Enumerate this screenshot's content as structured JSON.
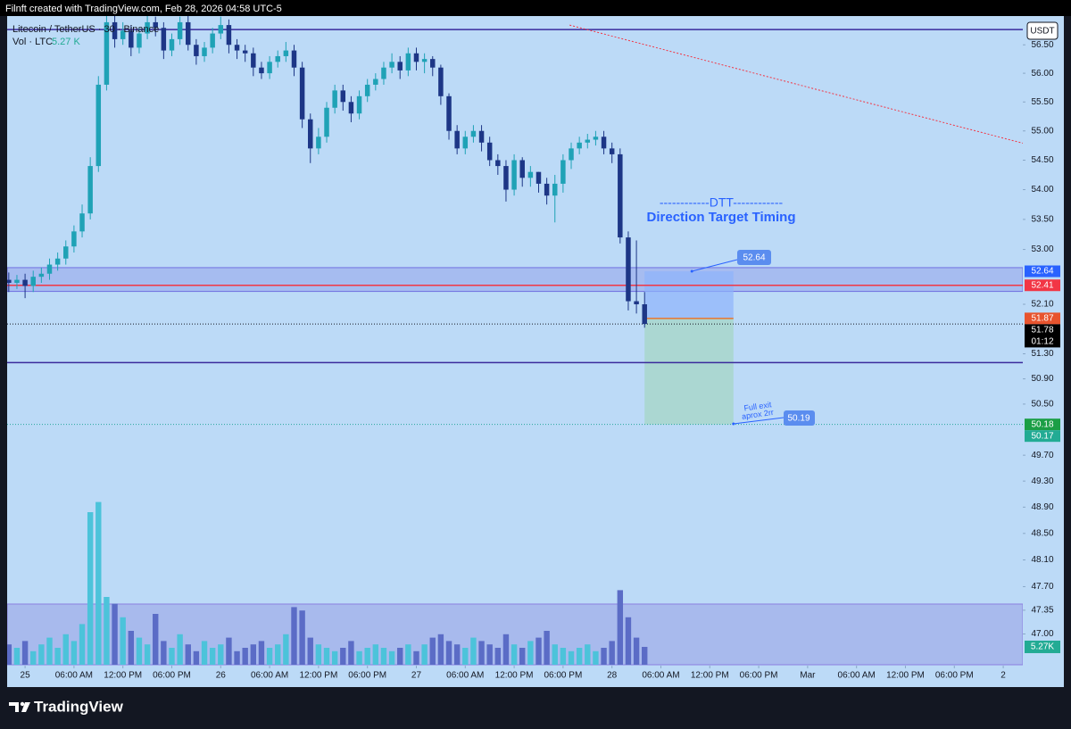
{
  "header": "Filnft created with TradingView.com, Feb 28, 2026 04:58 UTC-5",
  "brand": "TradingView",
  "chart_data": {
    "type": "candlestick",
    "title": "Litecoin / TetherUS · 30 · Binance",
    "volume_title": "Vol · LTC",
    "volume_last": {
      "value": 5.27,
      "label": "5.27 K"
    },
    "volume_badge": {
      "value": 5.27,
      "label": "5.27K"
    },
    "currency": "USDT",
    "x": [
      -2,
      -1,
      0,
      1,
      2,
      3,
      4,
      5,
      6,
      7,
      8,
      9,
      10,
      11,
      12,
      13,
      14,
      15,
      16,
      17,
      18,
      19,
      20,
      21,
      22,
      23,
      24,
      25,
      26,
      27,
      28,
      29,
      30,
      31,
      32,
      33,
      34,
      35,
      36,
      37,
      38,
      39,
      40,
      41,
      42,
      43,
      44,
      45,
      46,
      47,
      48,
      49,
      50,
      51,
      52,
      53,
      54,
      55,
      56,
      57,
      58,
      59,
      60,
      61,
      62,
      63,
      64,
      65,
      66,
      67,
      68,
      69,
      70,
      71,
      72,
      73,
      74,
      75,
      76
    ],
    "open": [
      52.5,
      52.45,
      52.5,
      52.4,
      52.55,
      52.6,
      52.75,
      52.85,
      53.05,
      53.3,
      53.6,
      54.4,
      55.8,
      56.9,
      56.6,
      56.75,
      56.45,
      56.7,
      56.9,
      56.8,
      56.4,
      56.6,
      56.9,
      56.5,
      56.3,
      56.45,
      56.7,
      56.85,
      56.5,
      56.4,
      56.35,
      56.1,
      56.0,
      56.2,
      56.3,
      56.4,
      56.1,
      55.2,
      54.7,
      54.9,
      55.4,
      55.7,
      55.5,
      55.3,
      55.6,
      55.8,
      55.9,
      56.1,
      56.2,
      56.05,
      56.35,
      56.2,
      56.25,
      56.1,
      55.6,
      55.0,
      54.7,
      54.9,
      55.0,
      54.8,
      54.5,
      54.4,
      54.0,
      54.5,
      54.2,
      54.3,
      54.1,
      53.9,
      54.1,
      54.5,
      54.7,
      54.8,
      54.85,
      54.9,
      54.7,
      54.6,
      53.2,
      52.15,
      52.1
    ],
    "high": [
      52.62,
      52.58,
      52.6,
      52.65,
      52.7,
      52.85,
      52.95,
      53.15,
      53.4,
      53.75,
      54.55,
      55.95,
      57.1,
      57.05,
      56.9,
      56.85,
      56.8,
      57.05,
      57.0,
      56.9,
      56.7,
      57.0,
      57.05,
      56.6,
      56.55,
      56.8,
      57.0,
      56.95,
      56.6,
      56.5,
      56.45,
      56.2,
      56.3,
      56.4,
      56.55,
      56.5,
      56.2,
      55.3,
      55.05,
      55.5,
      55.8,
      55.8,
      55.6,
      55.7,
      55.9,
      56.0,
      56.2,
      56.35,
      56.3,
      56.45,
      56.45,
      56.35,
      56.3,
      56.15,
      55.65,
      55.1,
      55.0,
      55.1,
      55.1,
      54.9,
      54.6,
      54.5,
      54.6,
      54.55,
      54.4,
      54.3,
      54.2,
      54.25,
      54.6,
      54.8,
      54.9,
      54.95,
      55.0,
      55.0,
      54.8,
      54.7,
      53.3,
      53.15,
      52.3
    ],
    "low": [
      52.3,
      52.35,
      52.2,
      52.3,
      52.45,
      52.5,
      52.65,
      52.75,
      52.95,
      53.2,
      53.5,
      54.3,
      55.7,
      56.45,
      56.5,
      56.3,
      56.35,
      56.6,
      56.65,
      56.25,
      56.3,
      56.5,
      56.4,
      56.15,
      56.2,
      56.35,
      56.6,
      56.35,
      56.25,
      56.2,
      55.95,
      55.9,
      55.9,
      56.1,
      56.2,
      55.95,
      55.05,
      54.45,
      54.6,
      54.8,
      55.3,
      55.35,
      55.15,
      55.2,
      55.5,
      55.7,
      55.8,
      56.0,
      55.9,
      55.95,
      56.05,
      56.0,
      55.95,
      55.45,
      54.85,
      54.6,
      54.6,
      54.8,
      54.65,
      54.4,
      54.25,
      53.8,
      53.9,
      54.05,
      54.05,
      53.95,
      53.75,
      53.45,
      53.95,
      54.35,
      54.6,
      54.7,
      54.75,
      54.6,
      54.45,
      53.1,
      52.0,
      51.95,
      51.72
    ],
    "close": [
      52.45,
      52.5,
      52.4,
      52.55,
      52.6,
      52.75,
      52.85,
      53.05,
      53.3,
      53.6,
      54.4,
      55.8,
      56.9,
      56.6,
      56.75,
      56.45,
      56.7,
      56.9,
      56.8,
      56.4,
      56.6,
      56.9,
      56.5,
      56.3,
      56.45,
      56.7,
      56.85,
      56.5,
      56.4,
      56.35,
      56.1,
      56.0,
      56.2,
      56.3,
      56.4,
      56.1,
      55.2,
      54.7,
      54.9,
      55.4,
      55.7,
      55.5,
      55.3,
      55.6,
      55.8,
      55.9,
      56.1,
      56.2,
      56.05,
      56.35,
      56.2,
      56.25,
      56.1,
      55.6,
      55.0,
      54.7,
      54.9,
      55.0,
      54.8,
      54.5,
      54.4,
      54.0,
      54.5,
      54.2,
      54.3,
      54.1,
      53.9,
      54.1,
      54.5,
      54.7,
      54.8,
      54.85,
      54.9,
      54.7,
      54.6,
      53.2,
      52.15,
      52.1,
      51.78
    ],
    "volume": [
      6,
      5,
      7,
      4,
      6,
      8,
      5,
      9,
      7,
      12,
      45,
      48,
      20,
      18,
      14,
      10,
      8,
      6,
      15,
      7,
      5,
      9,
      6,
      4,
      7,
      5,
      6,
      8,
      4,
      5,
      6,
      7,
      5,
      6,
      9,
      17,
      16,
      8,
      6,
      5,
      4,
      5,
      7,
      4,
      5,
      6,
      5,
      4,
      5,
      6,
      4,
      6,
      8,
      9,
      7,
      6,
      5,
      8,
      7,
      6,
      5,
      9,
      6,
      5,
      7,
      8,
      10,
      6,
      5,
      4,
      5,
      6,
      4,
      5,
      7,
      22,
      14,
      8,
      5.27
    ],
    "up_color": "#1fa2b6",
    "down_color": "#1d3686",
    "volume_up_color": "#4cc3da",
    "volume_down_color": "#5b6cc6",
    "xlim": [
      -2.2,
      122.4
    ],
    "xticks": [
      {
        "value": 0,
        "label": "25"
      },
      {
        "value": 6,
        "label": "06:00 AM"
      },
      {
        "value": 12,
        "label": "12:00 PM"
      },
      {
        "value": 18,
        "label": "06:00 PM"
      },
      {
        "value": 24,
        "label": "26"
      },
      {
        "value": 30,
        "label": "06:00 AM"
      },
      {
        "value": 36,
        "label": "12:00 PM"
      },
      {
        "value": 42,
        "label": "06:00 PM"
      },
      {
        "value": 48,
        "label": "27"
      },
      {
        "value": 54,
        "label": "06:00 AM"
      },
      {
        "value": 60,
        "label": "12:00 PM"
      },
      {
        "value": 66,
        "label": "06:00 PM"
      },
      {
        "value": 72,
        "label": "28"
      },
      {
        "value": 78,
        "label": "06:00 AM"
      },
      {
        "value": 84,
        "label": "12:00 PM"
      },
      {
        "value": 90,
        "label": "06:00 PM"
      },
      {
        "value": 96,
        "label": "Mar"
      },
      {
        "value": 102,
        "label": "06:00 AM"
      },
      {
        "value": 108,
        "label": "12:00 PM"
      },
      {
        "value": 114,
        "label": "06:00 PM"
      },
      {
        "value": 120,
        "label": "2"
      }
    ],
    "ylim": [
      46.55,
      57.01
    ],
    "log_scale": true,
    "grid": false,
    "yticks": [
      {
        "value": 56.5,
        "label": "56.50"
      },
      {
        "value": 56,
        "label": "56.00"
      },
      {
        "value": 55.5,
        "label": "55.50"
      },
      {
        "value": 55,
        "label": "55.00"
      },
      {
        "value": 54.5,
        "label": "54.50"
      },
      {
        "value": 54,
        "label": "54.00"
      },
      {
        "value": 53.5,
        "label": "53.50"
      },
      {
        "value": 53,
        "label": "53.00"
      },
      {
        "value": 52.1,
        "label": "52.10"
      },
      {
        "value": 51.3,
        "label": "51.30"
      },
      {
        "value": 50.9,
        "label": "50.90"
      },
      {
        "value": 50.5,
        "label": "50.50"
      },
      {
        "value": 49.7,
        "label": "49.70"
      },
      {
        "value": 49.3,
        "label": "49.30"
      },
      {
        "value": 48.9,
        "label": "48.90"
      },
      {
        "value": 48.5,
        "label": "48.50"
      },
      {
        "value": 48.1,
        "label": "48.10"
      },
      {
        "value": 47.7,
        "label": "47.70"
      },
      {
        "value": 47.35,
        "label": "47.35"
      },
      {
        "value": 47,
        "label": "47.00"
      }
    ],
    "volume_lim": [
      0,
      50
    ],
    "volume_zone_top": 17.9,
    "hlines": [
      {
        "value": 56.77,
        "color": "#3a2a9c"
      },
      {
        "value": 51.16,
        "color": "#3a2a9c"
      },
      {
        "value": 52.41,
        "color": "#f23645"
      }
    ],
    "zones": [
      {
        "top": 52.7,
        "bottom": 52.31,
        "color": "#6f6fe0"
      }
    ],
    "dotted": [
      {
        "value": 51.78,
        "color": "#131722"
      },
      {
        "value": 50.18,
        "color": "#26a69a"
      }
    ],
    "trendline": {
      "x": [
        66.8,
        122.4
      ],
      "y": [
        56.85,
        54.79
      ],
      "color": "#f23645"
    },
    "position": {
      "x": [
        76,
        86.9
      ],
      "entry": 51.87,
      "stop": 52.64,
      "target": 50.18
    },
    "price_labels": [
      {
        "value": 52.64,
        "label": "52.64",
        "color": "#2962ff"
      },
      {
        "value": 52.41,
        "label": "52.41",
        "color": "#f23645"
      },
      {
        "value": 51.87,
        "label": "51.87",
        "color": "#e8542e"
      },
      {
        "value": 51.78,
        "label": "51.78",
        "color": "#000000"
      },
      {
        "value": 50.18,
        "label": "50.18",
        "color": "#1b9e45"
      },
      {
        "value": 50.17,
        "label": "50.17",
        "color": "#22ab94"
      }
    ],
    "countdown": "01:12",
    "annotations": {
      "dtt": "------------DTT------------",
      "dtt_subtitle": "Direction Target Timing",
      "stop_callout": {
        "x": 81.8,
        "value": 52.64,
        "label": "52.64"
      },
      "exit_note": [
        "Full exit",
        "aprox 2rr"
      ],
      "target_callout": {
        "x": 86.9,
        "value": 50.19,
        "label": "50.19"
      }
    }
  }
}
